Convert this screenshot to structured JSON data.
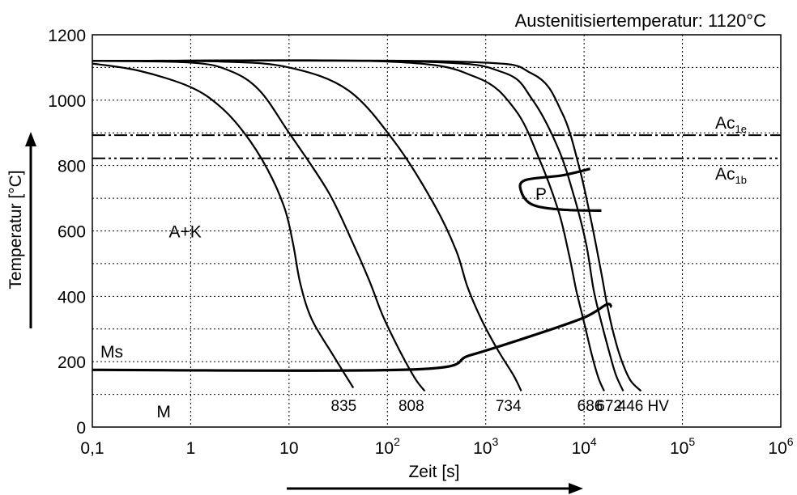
{
  "chart_data": {
    "type": "line",
    "title": "Austenitisiertemperatur: 1120°C",
    "xlabel": "Zeit [s]",
    "ylabel": "Temperatur [°C]",
    "x_scale": "log",
    "xlim": [
      0.1,
      1000000
    ],
    "ylim": [
      0,
      1200
    ],
    "grid": true,
    "x_ticks": [
      {
        "value": 0.1,
        "base": "0,1",
        "exp": ""
      },
      {
        "value": 1,
        "base": "1",
        "exp": ""
      },
      {
        "value": 10,
        "base": "10",
        "exp": ""
      },
      {
        "value": 100,
        "base": "10",
        "exp": "2"
      },
      {
        "value": 1000,
        "base": "10",
        "exp": "3"
      },
      {
        "value": 10000,
        "base": "10",
        "exp": "4"
      },
      {
        "value": 100000,
        "base": "10",
        "exp": "5"
      },
      {
        "value": 1000000,
        "base": "10",
        "exp": "6"
      }
    ],
    "y_ticks": [
      0,
      200,
      400,
      600,
      800,
      1000,
      1200
    ],
    "reference_lines": [
      {
        "base": "Ac",
        "sub": "1e",
        "y": 893,
        "style": "dashdot"
      },
      {
        "base": "Ac",
        "sub": "1b",
        "y": 822,
        "style": "dashdotdot"
      }
    ],
    "series": [
      {
        "points": [
          [
            0.1,
            1112
          ],
          [
            0.3,
            1090
          ],
          [
            1,
            1040
          ],
          [
            2,
            980
          ],
          [
            3.5,
            900
          ],
          [
            6,
            790
          ],
          [
            9,
            670
          ],
          [
            11,
            560
          ],
          [
            13,
            440
          ],
          [
            17,
            330
          ],
          [
            28,
            220
          ],
          [
            45,
            120
          ]
        ]
      },
      {
        "points": [
          [
            0.1,
            1120
          ],
          [
            1,
            1115
          ],
          [
            2.5,
            1090
          ],
          [
            5,
            1030
          ],
          [
            10,
            900
          ],
          [
            25,
            720
          ],
          [
            45,
            560
          ],
          [
            65,
            450
          ],
          [
            90,
            340
          ],
          [
            130,
            240
          ],
          [
            190,
            150
          ],
          [
            240,
            110
          ]
        ]
      },
      {
        "points": [
          [
            0.1,
            1120
          ],
          [
            2,
            1118
          ],
          [
            10,
            1100
          ],
          [
            40,
            1030
          ],
          [
            120,
            870
          ],
          [
            300,
            680
          ],
          [
            500,
            540
          ],
          [
            650,
            430
          ],
          [
            900,
            330
          ],
          [
            1300,
            240
          ],
          [
            1900,
            160
          ],
          [
            2300,
            110
          ]
        ]
      },
      {
        "points": [
          [
            0.1,
            1120
          ],
          [
            100,
            1118
          ],
          [
            800,
            1070
          ],
          [
            2000,
            970
          ],
          [
            3500,
            820
          ],
          [
            5500,
            660
          ],
          [
            7000,
            530
          ],
          [
            8300,
            420
          ],
          [
            10000,
            320
          ],
          [
            12000,
            220
          ],
          [
            14000,
            150
          ],
          [
            16000,
            110
          ]
        ]
      },
      {
        "points": [
          [
            0.1,
            1120
          ],
          [
            200,
            1118
          ],
          [
            1500,
            1085
          ],
          [
            3000,
            1000
          ],
          [
            5500,
            850
          ],
          [
            8000,
            700
          ],
          [
            10500,
            560
          ],
          [
            12500,
            420
          ],
          [
            15000,
            320
          ],
          [
            18000,
            230
          ],
          [
            21000,
            160
          ],
          [
            25000,
            110
          ]
        ]
      },
      {
        "points": [
          [
            0.1,
            1120
          ],
          [
            500,
            1118
          ],
          [
            3000,
            1080
          ],
          [
            6000,
            960
          ],
          [
            9000,
            790
          ],
          [
            12000,
            620
          ],
          [
            15000,
            470
          ],
          [
            17500,
            360
          ],
          [
            21000,
            260
          ],
          [
            25000,
            190
          ],
          [
            30000,
            140
          ],
          [
            38000,
            110
          ]
        ]
      }
    ],
    "ms_line": {
      "label": "Ms",
      "points": [
        [
          0.1,
          175
        ],
        [
          180,
          176
        ],
        [
          700,
          220
        ],
        [
          3000,
          280
        ],
        [
          10000,
          335
        ],
        [
          17000,
          375
        ],
        [
          19000,
          367
        ]
      ]
    },
    "pearlite_region": {
      "label": "P",
      "points": [
        [
          11500,
          790
        ],
        [
          6000,
          770
        ],
        [
          2500,
          755
        ],
        [
          2300,
          720
        ],
        [
          3000,
          680
        ],
        [
          6000,
          665
        ],
        [
          15000,
          662
        ]
      ]
    },
    "region_labels": [
      {
        "text": "A+K",
        "x": 0.6,
        "y": 600
      },
      {
        "text": "M",
        "x": 0.45,
        "y": 50
      }
    ],
    "hardness_labels": [
      {
        "text": "835",
        "x": 36
      },
      {
        "text": "808",
        "x": 175
      },
      {
        "text": "734",
        "x": 1700
      },
      {
        "text": "686",
        "x": 11500
      },
      {
        "text": "672",
        "x": 18000
      },
      {
        "text": "446 HV",
        "x": 40000
      }
    ]
  }
}
